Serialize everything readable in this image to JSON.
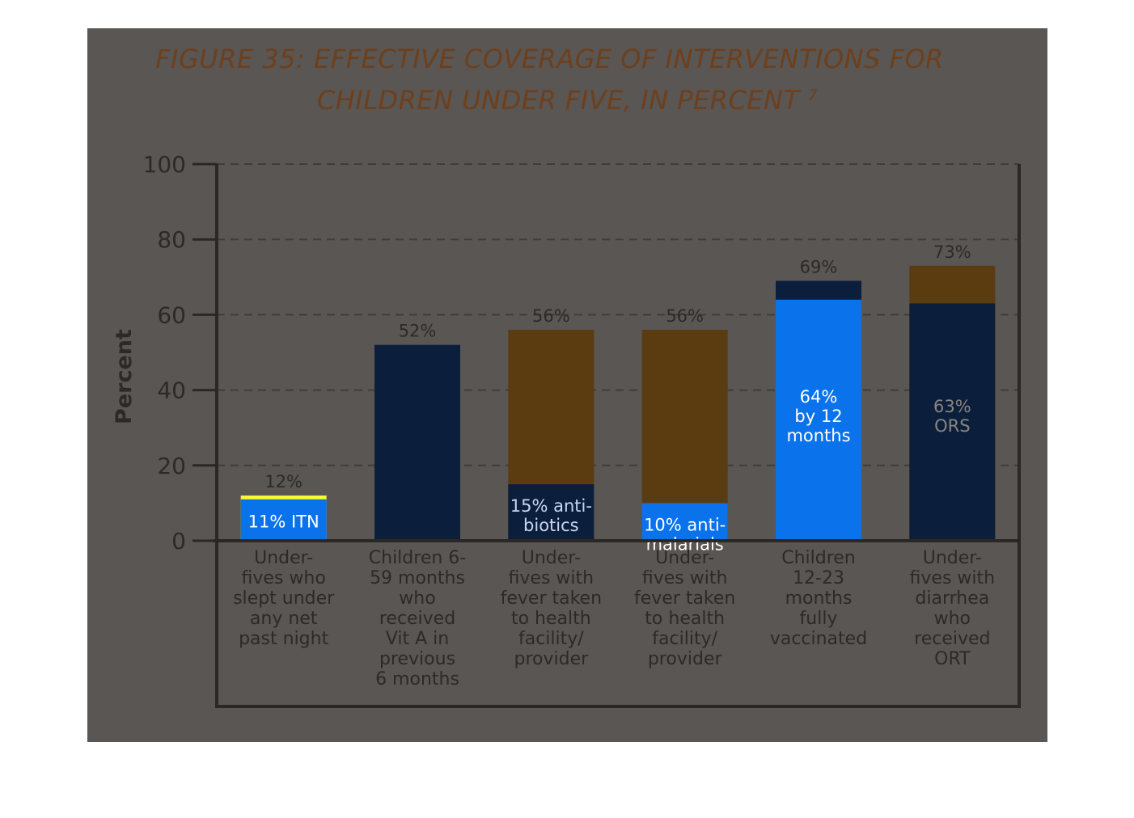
{
  "chart_data": {
    "type": "bar",
    "stacked": true,
    "title_line1": "FIGURE 35: EFFECTIVE COVERAGE OF INTERVENTIONS FOR",
    "title_line2": "CHILDREN UNDER FIVE, IN PERCENT",
    "title_footnote": "7",
    "ylabel": "Percent",
    "ylim": [
      0,
      100
    ],
    "yticks": [
      0,
      20,
      40,
      60,
      80,
      100
    ],
    "grid": true,
    "categories": [
      [
        "Under-",
        "fives who",
        "slept under",
        "any net",
        "past night"
      ],
      [
        "Children 6-",
        "59 months",
        "who",
        "received",
        "Vit A in",
        "previous",
        "6 months"
      ],
      [
        "Under-",
        "fives with",
        "fever taken",
        "to health",
        "facility/",
        "provider"
      ],
      [
        "Under-",
        "fives with",
        "fever taken",
        "to health",
        "facility/",
        "provider"
      ],
      [
        "Children",
        "12-23",
        "months",
        "fully",
        "vaccinated"
      ],
      [
        "Under-",
        "fives with",
        "diarrhea",
        "who",
        "received",
        "ORT"
      ]
    ],
    "totals": [
      12,
      52,
      56,
      56,
      69,
      73
    ],
    "total_labels": [
      "12%",
      "52%",
      "56%",
      "56%",
      "69%",
      "73%"
    ],
    "inner_values": [
      11,
      52,
      15,
      10,
      64,
      63
    ],
    "inner_labels": [
      [
        "11% ITN"
      ],
      [],
      [
        "15% anti-",
        "biotics"
      ],
      [
        "10% anti-",
        "malarials"
      ],
      [
        "64%",
        "by 12",
        "months"
      ],
      [
        "63%",
        "ORS"
      ]
    ],
    "colors": {
      "panel": "#595653",
      "navy": "#0b1f3c",
      "brown": "#5b3c10",
      "blue": "#0a72ea",
      "yellow": "#fcfc2c",
      "axis": "#2a2826",
      "grid": "#3f3c3a",
      "text_dark": "#2c2a28",
      "text_light": "#8a8580",
      "title": "#6e3f1c"
    }
  }
}
